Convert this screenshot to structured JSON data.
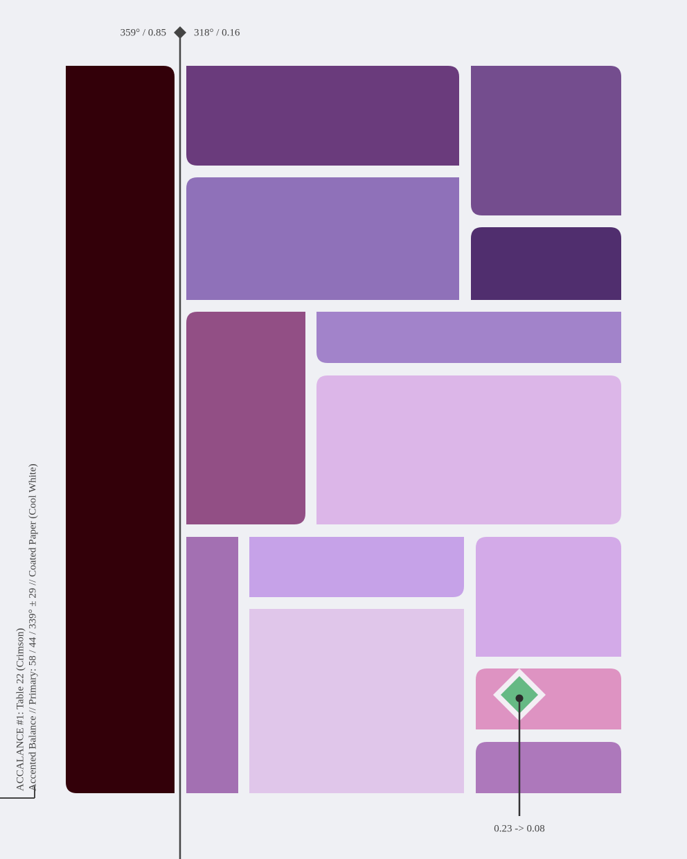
{
  "header": {
    "left_reading": "359° / 0.85",
    "right_reading": "318° / 0.16"
  },
  "caption": {
    "title": "ACCALANCE #1: Table 22 (Crimson)",
    "subtitle": "Accented Balance // Primary: 58 / 44 / 339° ± 29 // Coated Paper (Cool White)"
  },
  "marker": {
    "label": "0.23 -> 0.08"
  }
}
